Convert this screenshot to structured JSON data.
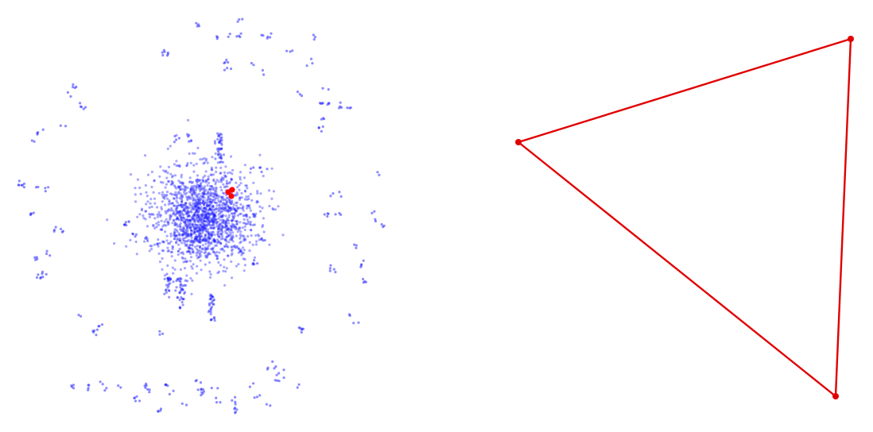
{
  "colors": {
    "background": "#ffffff",
    "node": "#1a1aff",
    "highlight": "#ff0000",
    "edge": "#e00000"
  },
  "overview": {
    "description_kind": "network-graph-overview",
    "dense_cluster_points": 1600,
    "highlight_node_count": 3
  },
  "zoom": {
    "description_kind": "selected-subgraph",
    "node_count": 3,
    "edges": [
      [
        0,
        1
      ],
      [
        1,
        2
      ],
      [
        2,
        0
      ]
    ]
  }
}
